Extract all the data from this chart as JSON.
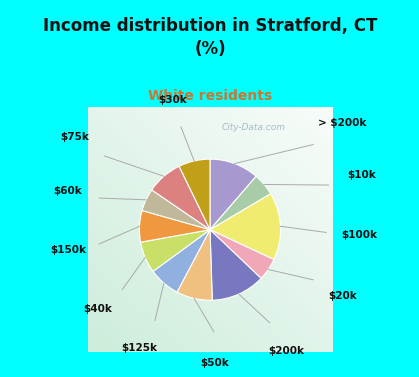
{
  "title": "Income distribution in Stratford, CT\n(%)",
  "subtitle": "White residents",
  "title_color": "#111111",
  "subtitle_color": "#c87832",
  "bg_cyan": "#00ffff",
  "labels": [
    "> $200k",
    "$10k",
    "$100k",
    "$20k",
    "$200k",
    "$50k",
    "$125k",
    "$40k",
    "$150k",
    "$60k",
    "$75k",
    "$30k"
  ],
  "values": [
    11,
    5,
    15,
    5,
    12,
    8,
    7,
    7,
    7,
    5,
    8,
    7
  ],
  "colors": [
    "#a898d0",
    "#a8cca8",
    "#f0ec70",
    "#f0a8b8",
    "#7878c0",
    "#f0c080",
    "#90b0e0",
    "#c8e068",
    "#f09840",
    "#c0b898",
    "#dc8080",
    "#c0a018"
  ],
  "label_fontsize": 7.5,
  "label_color": "#111111",
  "watermark": "City-Data.com",
  "title_fontsize": 12,
  "subtitle_fontsize": 10
}
